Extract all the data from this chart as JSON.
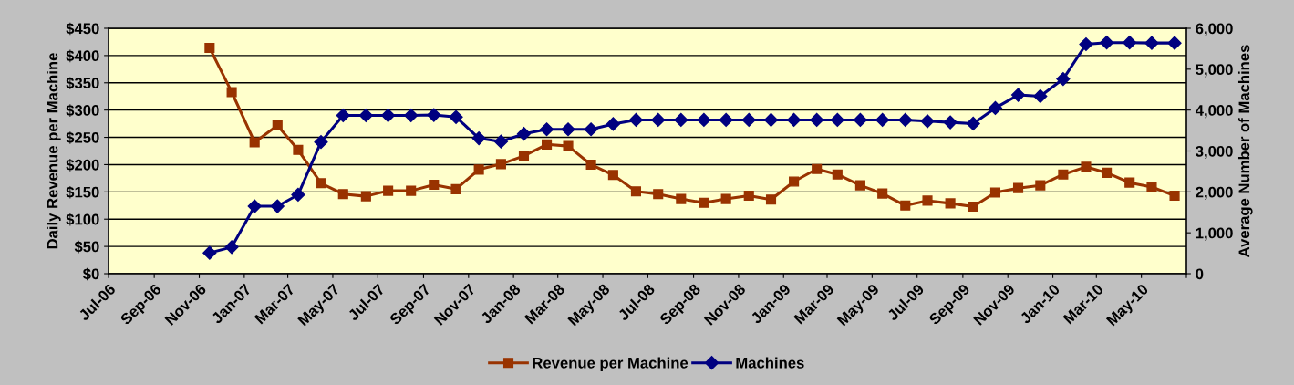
{
  "chart_data": {
    "type": "line",
    "x": [
      "2006-11-15",
      "2006-12-15",
      "2007-01-15",
      "2007-02-15",
      "2007-03-15",
      "2007-04-15",
      "2007-05-15",
      "2007-06-15",
      "2007-07-15",
      "2007-08-15",
      "2007-09-15",
      "2007-10-15",
      "2007-11-15",
      "2007-12-15",
      "2008-01-15",
      "2008-02-15",
      "2008-03-15",
      "2008-04-15",
      "2008-05-15",
      "2008-06-15",
      "2008-07-15",
      "2008-08-15",
      "2008-09-15",
      "2008-10-15",
      "2008-11-15",
      "2008-12-15",
      "2009-01-15",
      "2009-02-15",
      "2009-03-15",
      "2009-04-15",
      "2009-05-15",
      "2009-06-15",
      "2009-07-15",
      "2009-08-15",
      "2009-09-15",
      "2009-10-15",
      "2009-11-15",
      "2009-12-15",
      "2010-01-15",
      "2010-02-15",
      "2010-03-15",
      "2010-04-15",
      "2010-05-15",
      "2010-06-15"
    ],
    "series": [
      {
        "name": "Revenue per Machine",
        "color": "#993300",
        "marker": "square",
        "values": [
          414,
          333,
          241,
          272,
          227,
          166,
          146,
          142,
          152,
          152,
          163,
          155,
          191,
          201,
          216,
          237,
          234,
          200,
          181,
          151,
          146,
          137,
          130,
          137,
          143,
          136,
          169,
          192,
          182,
          162,
          147,
          125,
          134,
          129,
          123,
          149,
          157,
          162,
          182,
          196,
          185,
          167,
          159,
          143
        ]
      },
      {
        "name": "Machines",
        "color": "#000080",
        "marker": "diamond",
        "axis": "y2",
        "values": [
          510,
          650,
          1650,
          1650,
          1930,
          3220,
          3870,
          3870,
          3870,
          3870,
          3880,
          3830,
          3310,
          3230,
          3420,
          3530,
          3530,
          3530,
          3660,
          3760,
          3760,
          3760,
          3760,
          3760,
          3760,
          3760,
          3760,
          3760,
          3760,
          3760,
          3760,
          3760,
          3730,
          3700,
          3670,
          4050,
          4370,
          4340,
          4760,
          5610,
          5650,
          5650,
          5640,
          5640
        ]
      }
    ],
    "ylabel": "Daily Revenue per Machine",
    "y2label": "Average Number of Machines",
    "ylim": [
      0,
      450
    ],
    "yticks": [
      {
        "value": 0,
        "label": "$0"
      },
      {
        "value": 50,
        "label": "$50"
      },
      {
        "value": 100,
        "label": "$100"
      },
      {
        "value": 150,
        "label": "$150"
      },
      {
        "value": 200,
        "label": "$200"
      },
      {
        "value": 250,
        "label": "$250"
      },
      {
        "value": 300,
        "label": "$300"
      },
      {
        "value": 350,
        "label": "$350"
      },
      {
        "value": 400,
        "label": "$400"
      },
      {
        "value": 450,
        "label": "$450"
      }
    ],
    "y2lim": [
      0,
      6000
    ],
    "y2ticks": [
      0,
      {
        "value": 1000,
        "label": "1,000"
      },
      {
        "value": 2000,
        "label": "2,000"
      },
      {
        "value": 3000,
        "label": "3,000"
      },
      {
        "value": 4000,
        "label": "4,000"
      },
      {
        "value": 5000,
        "label": "5,000"
      },
      {
        "value": 6000,
        "label": "6,000"
      }
    ],
    "xlim": [
      "2006-07-01",
      "2010-07-01"
    ],
    "xticks": [
      {
        "value": "2006-07-01",
        "label": "Jul-06"
      },
      {
        "value": "2006-09-01",
        "label": "Sep-06"
      },
      {
        "value": "2006-11-01",
        "label": "Nov-06"
      },
      {
        "value": "2007-01-01",
        "label": "Jan-07"
      },
      {
        "value": "2007-03-01",
        "label": "Mar-07"
      },
      {
        "value": "2007-05-01",
        "label": "May-07"
      },
      {
        "value": "2007-07-01",
        "label": "Jul-07"
      },
      {
        "value": "2007-09-01",
        "label": "Sep-07"
      },
      {
        "value": "2007-11-01",
        "label": "Nov-07"
      },
      {
        "value": "2008-01-01",
        "label": "Jan-08"
      },
      {
        "value": "2008-03-01",
        "label": "Mar-08"
      },
      {
        "value": "2008-05-01",
        "label": "May-08"
      },
      {
        "value": "2008-07-01",
        "label": "Jul-08"
      },
      {
        "value": "2008-09-01",
        "label": "Sep-08"
      },
      {
        "value": "2008-11-01",
        "label": "Nov-08"
      },
      {
        "value": "2009-01-01",
        "label": "Jan-09"
      },
      {
        "value": "2009-03-01",
        "label": "Mar-09"
      },
      {
        "value": "2009-05-01",
        "label": "May-09"
      },
      {
        "value": "2009-07-01",
        "label": "Jul-09"
      },
      {
        "value": "2009-09-01",
        "label": "Sep-09"
      },
      {
        "value": "2009-11-01",
        "label": "Nov-09"
      },
      {
        "value": "2010-01-01",
        "label": "Jan-10"
      },
      {
        "value": "2010-03-01",
        "label": "Mar-10"
      },
      {
        "value": "2010-05-01",
        "label": "May-10"
      },
      {
        "value": "2010-07-01",
        "label": null
      }
    ],
    "grid": "y",
    "legend": "bottom",
    "line_style": "solid"
  }
}
